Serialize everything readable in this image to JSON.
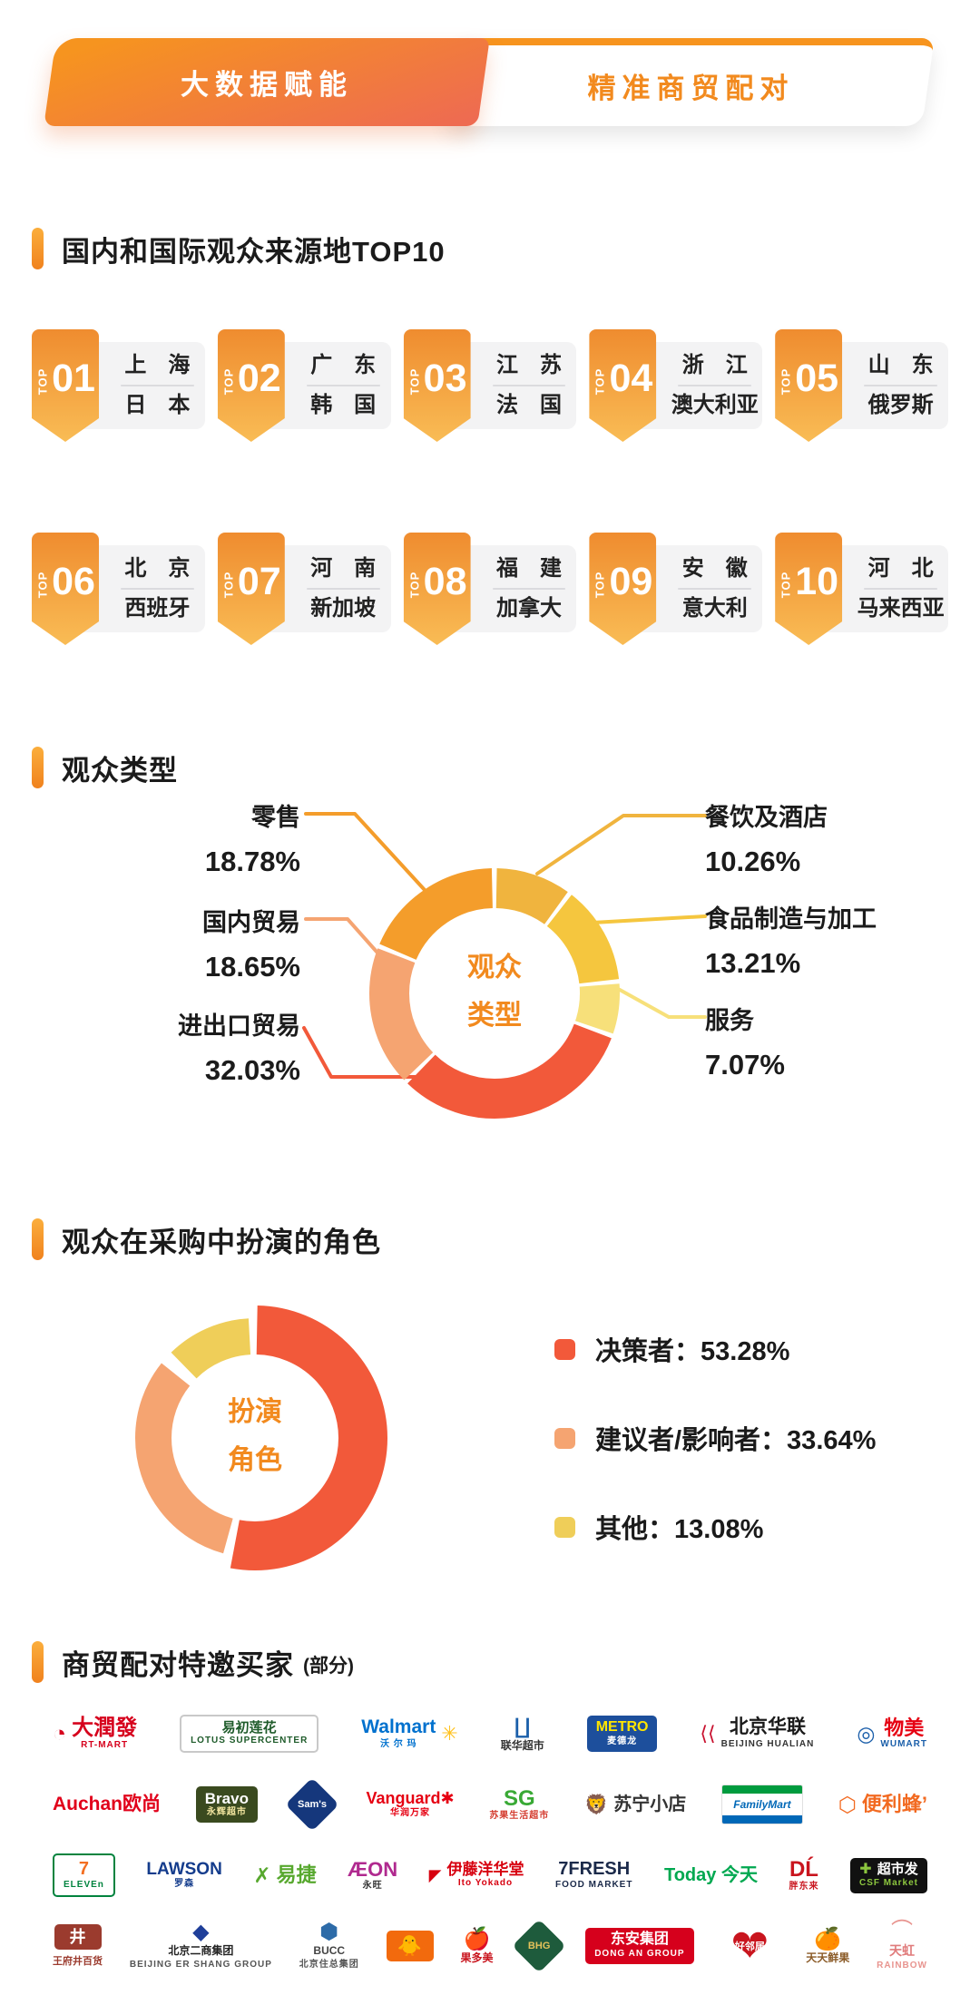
{
  "page": {
    "background": "#FFFFFF",
    "accent": "#F7941E"
  },
  "header": {
    "tabs": [
      {
        "label": "大数据赋能",
        "active": true
      },
      {
        "label": "精准商贸配对",
        "active": false
      }
    ]
  },
  "top10": {
    "title": "国内和国际观众来源地TOP10",
    "badge_word": "TOP",
    "items": [
      {
        "rank": "01",
        "domestic": "上　海",
        "international": "日　本"
      },
      {
        "rank": "02",
        "domestic": "广　东",
        "international": "韩　国"
      },
      {
        "rank": "03",
        "domestic": "江　苏",
        "international": "法　国"
      },
      {
        "rank": "04",
        "domestic": "浙　江",
        "international": "澳大利亚"
      },
      {
        "rank": "05",
        "domestic": "山　东",
        "international": "俄罗斯"
      },
      {
        "rank": "06",
        "domestic": "北　京",
        "international": "西班牙"
      },
      {
        "rank": "07",
        "domestic": "河　南",
        "international": "新加坡"
      },
      {
        "rank": "08",
        "domestic": "福　建",
        "international": "加拿大"
      },
      {
        "rank": "09",
        "domestic": "安　徽",
        "international": "意大利"
      },
      {
        "rank": "10",
        "domestic": "河　北",
        "international": "马来西亚"
      }
    ]
  },
  "audience_type": {
    "title": "观众类型",
    "center_lines": [
      "观众",
      "类型"
    ],
    "center_color": "#F28A1E",
    "callouts_left": [
      {
        "label": "零售",
        "value": "18.78%",
        "color": "#F49D2B"
      },
      {
        "label": "国内贸易",
        "value": "18.65%",
        "color": "#F5A471"
      },
      {
        "label": "进出口贸易",
        "value": "32.03%",
        "color": "#F2593A"
      }
    ],
    "callouts_right": [
      {
        "label": "餐饮及酒店",
        "value": "10.26%",
        "color": "#F0B43E"
      },
      {
        "label": "食品制造与加工",
        "value": "13.21%",
        "color": "#F5C63E"
      },
      {
        "label": "服务",
        "value": "7.07%",
        "color": "#F7E07A"
      }
    ]
  },
  "roles": {
    "title": "观众在采购中扮演的角色",
    "center_lines": [
      "扮演",
      "角色"
    ],
    "center_color": "#F28A1E",
    "legend": [
      {
        "label": "决策者：",
        "value": "53.28%",
        "color": "#F2593A"
      },
      {
        "label": "建议者/影响者：",
        "value": "33.64%",
        "color": "#F5A471"
      },
      {
        "label": "其他：",
        "value": "13.08%",
        "color": "#EFCE59"
      }
    ]
  },
  "buyers": {
    "title": "商贸配对特邀买家",
    "note": "(部分)",
    "rows": [
      [
        {
          "main": "大潤發",
          "sub": "RT-MART",
          "type": "text",
          "fg": "#D6001C",
          "sub_fg": "#D6001C",
          "mark": "◔",
          "mark_color": "#D6001C",
          "size": 24
        },
        {
          "main": "易初莲花",
          "sub": "LOTUS SUPERCENTER",
          "type": "tile",
          "bg": "#FFFFFF",
          "fg": "#1E5B2A",
          "sub_fg": "#1E5B2A",
          "border": "#C9C9C9",
          "size": 15
        },
        {
          "main": "Walmart",
          "sub": "沃 尔 玛",
          "type": "text",
          "fg": "#0071CE",
          "sub_fg": "#0071CE",
          "mark": "✳",
          "mark_color": "#FFC220",
          "mark_side": "right",
          "size": 21
        },
        {
          "main": "联华超市",
          "type": "mark-top",
          "mark": "∐",
          "mark_color": "#1B5FAA",
          "fg": "#333333",
          "size": 12
        },
        {
          "main": "METRO",
          "sub": "麦德龙",
          "type": "tile",
          "bg": "#1D4F9C",
          "fg": "#FFE500",
          "sub_fg": "#FFFFFF",
          "size": 16
        },
        {
          "main": "北京华联",
          "sub": "BEIJING HUALIAN",
          "type": "text",
          "fg": "#1A1A1A",
          "sub_fg": "#333333",
          "mark": "⟨⟨",
          "mark_color": "#C8102E",
          "size": 21
        },
        {
          "main": "物美",
          "sub": "WUMART",
          "type": "text",
          "fg": "#E60012",
          "sub_fg": "#1B5FAA",
          "mark": "◎",
          "mark_color": "#1B5FAA",
          "size": 22
        }
      ],
      [
        {
          "main": "Auchan欧尚",
          "type": "text",
          "fg": "#E1001A",
          "size": 21
        },
        {
          "main": "Bravo",
          "sub": "永辉超市",
          "type": "tile",
          "bg": "#3A4A1F",
          "fg": "#FFFFFF",
          "sub_fg": "#F3E6A0",
          "size": 17
        },
        {
          "main": "Sam's",
          "type": "diamond",
          "bg": "#15377C",
          "fg": "#FFFFFF",
          "size": 11
        },
        {
          "main": "Vanguard✱",
          "sub": "华润万家",
          "type": "text",
          "fg": "#E60012",
          "sub_fg": "#E60012",
          "size": 18
        },
        {
          "main": "SG",
          "sub": "苏果生活超市",
          "type": "text",
          "fg": "#39A935",
          "sub_fg": "#D43C2F",
          "size": 24
        },
        {
          "main": "苏宁小店",
          "type": "text",
          "fg": "#333333",
          "mark": "🦁",
          "mark_color": "#F5A623",
          "size": 20
        },
        {
          "main": "FamilyMart",
          "type": "stripes",
          "fg": "#0068B7",
          "stripe_top": "#009B3E",
          "stripe_bottom": "#0068B7",
          "size": 12
        },
        {
          "main": "便利蜂’",
          "type": "text",
          "fg": "#F26A21",
          "mark": "⬡",
          "mark_color": "#F26A21",
          "size": 22
        }
      ],
      [
        {
          "main": "7",
          "sub": "ELEVEn",
          "type": "tile",
          "bg": "#FFFFFF",
          "fg": "#F36F21",
          "sub_fg": "#00833E",
          "border": "#00833E",
          "size": 20
        },
        {
          "main": "LAWSON",
          "sub": "罗森",
          "type": "text",
          "fg": "#143C8C",
          "sub_fg": "#143C8C",
          "size": 19
        },
        {
          "main": "易捷",
          "type": "text",
          "fg": "#57A82E",
          "mark": "✗",
          "mark_color": "#57A82E",
          "size": 22
        },
        {
          "main": "ÆON",
          "sub": "永旺",
          "type": "text",
          "fg": "#B02A8F",
          "sub_fg": "#333333",
          "size": 22
        },
        {
          "main": "伊藤洋华堂",
          "sub": "Ito Yokado",
          "type": "text",
          "fg": "#D7000F",
          "sub_fg": "#D7000F",
          "mark": "◤",
          "mark_color": "#D7000F",
          "size": 17
        },
        {
          "main": "7FRESH",
          "sub": "FOOD MARKET",
          "type": "text",
          "fg": "#1B2A4A",
          "sub_fg": "#1B2A4A",
          "size": 20
        },
        {
          "main": "Today 今天",
          "type": "text",
          "fg": "#00A850",
          "size": 20
        },
        {
          "main": "DĹ",
          "sub": "胖东来",
          "type": "text",
          "fg": "#C9151E",
          "sub_fg": "#C9151E",
          "size": 24
        },
        {
          "main": "超市发",
          "sub": "CSF Market",
          "type": "tile",
          "bg": "#111111",
          "fg": "#FFFFFF",
          "sub_fg": "#8CC63F",
          "mark": "✚",
          "mark_color": "#8CC63F",
          "size": 15
        }
      ],
      [
        {
          "main": "井",
          "caption": "王府井百货",
          "type": "tile",
          "bg": "#9B3B2E",
          "fg": "#FFFFFF",
          "caption_color": "#9B3B2E",
          "size": 18
        },
        {
          "main": "北京二商集团",
          "sub": "BEIJING ER SHANG GROUP",
          "type": "mark-top",
          "mark": "◆",
          "mark_color": "#1F3F99",
          "fg": "#222222",
          "sub_fg": "#555555",
          "size": 12
        },
        {
          "main": "BUCC",
          "sub": "北京住总集团",
          "type": "mark-top",
          "mark": "⬢",
          "mark_color": "#2D6BA8",
          "fg": "#444444",
          "sub_fg": "#555555",
          "size": 12
        },
        {
          "main": "🐥",
          "type": "tile",
          "bg": "#F26A0D",
          "fg": "#FFE500",
          "size": 22
        },
        {
          "main": "果多美",
          "type": "mark-top",
          "mark": "🍎",
          "mark_color": "#C9151E",
          "fg": "#C9151E",
          "size": 12
        },
        {
          "main": "BHG",
          "type": "diamond",
          "bg": "#1E5B3C",
          "fg": "#E4C25A",
          "size": 11
        },
        {
          "main": "东安集团",
          "sub": "DONG AN GROUP",
          "type": "tile",
          "bg": "#D6001C",
          "fg": "#FFFFFF",
          "sub_fg": "#FFFFFF",
          "size": 16
        },
        {
          "main": "好邻居",
          "type": "heart",
          "fg": "#FFFFFF",
          "bg": "#C9151E",
          "size": 11
        },
        {
          "main": "天天鲜果",
          "type": "mark-top",
          "mark": "🍊",
          "mark_color": "#E8831E",
          "fg": "#8A5A26",
          "size": 12
        },
        {
          "main": "天虹",
          "sub": "RAINBOW",
          "type": "mark-top",
          "mark": "⌒",
          "mark_color": "#E8948F",
          "fg": "#E07B7B",
          "sub_fg": "#E8948F",
          "size": 14
        }
      ]
    ]
  },
  "chart_data": [
    {
      "type": "pie",
      "variant": "donut",
      "title": "观众类型",
      "labels": [
        "餐饮及酒店",
        "食品制造与加工",
        "服务",
        "进出口贸易",
        "国内贸易",
        "零售"
      ],
      "values": [
        10.26,
        13.21,
        7.07,
        32.03,
        18.65,
        18.78
      ],
      "colors": [
        "#F0B43E",
        "#F5C63E",
        "#F7E07A",
        "#F2593A",
        "#F5A471",
        "#F49D2B"
      ],
      "units": "%",
      "start_angle_deg": 0,
      "direction": "clockwise",
      "center_label": "观众类型",
      "legend_position": "callouts"
    },
    {
      "type": "pie",
      "variant": "donut",
      "title": "观众在采购中扮演的角色",
      "labels": [
        "决策者",
        "建议者/影响者",
        "其他"
      ],
      "values": [
        53.28,
        33.64,
        13.08
      ],
      "colors": [
        "#F2593A",
        "#F5A471",
        "#EFCE59"
      ],
      "units": "%",
      "start_angle_deg": 0,
      "direction": "clockwise",
      "center_label": "扮演角色",
      "legend_position": "right"
    }
  ]
}
